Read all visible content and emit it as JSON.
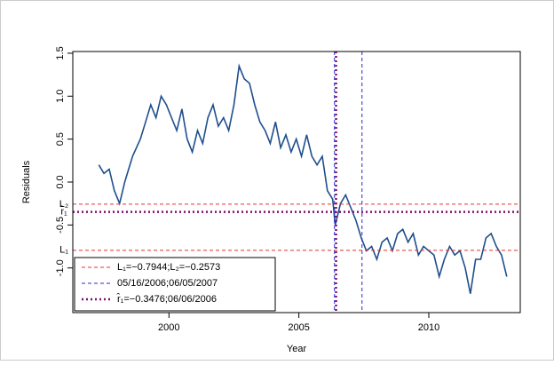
{
  "chart_data": {
    "type": "line",
    "xlabel": "Year",
    "ylabel": "Residuals",
    "xlim": [
      1996.3,
      2013.52
    ],
    "ylim": [
      -1.52,
      1.52
    ],
    "xticks": [
      2000,
      2005,
      2010
    ],
    "yticks": [
      {
        "value": -1.0,
        "label": "-1.0"
      },
      -0.5,
      {
        "value": 0.0,
        "label": "0.0"
      },
      0.5,
      {
        "value": 1.0,
        "label": "1.0"
      },
      1.5
    ],
    "x": [
      1997.3,
      1997.5,
      1997.7,
      1997.9,
      1998.1,
      1998.3,
      1998.6,
      1998.9,
      1999.1,
      1999.3,
      1999.5,
      1999.7,
      1999.9,
      2000.1,
      2000.3,
      2000.5,
      2000.7,
      2000.9,
      2001.1,
      2001.3,
      2001.5,
      2001.7,
      2001.9,
      2002.1,
      2002.3,
      2002.5,
      2002.7,
      2002.9,
      2003.1,
      2003.3,
      2003.5,
      2003.7,
      2003.9,
      2004.1,
      2004.3,
      2004.5,
      2004.7,
      2004.9,
      2005.1,
      2005.3,
      2005.5,
      2005.7,
      2005.9,
      2006.1,
      2006.3,
      2006.4,
      2006.6,
      2006.8,
      2007.0,
      2007.2,
      2007.4,
      2007.6,
      2007.8,
      2008.0,
      2008.2,
      2008.4,
      2008.6,
      2008.8,
      2009.0,
      2009.2,
      2009.4,
      2009.6,
      2009.8,
      2010.0,
      2010.2,
      2010.4,
      2010.6,
      2010.8,
      2011.0,
      2011.2,
      2011.4,
      2011.6,
      2011.8,
      2012.0,
      2012.2,
      2012.4,
      2012.6,
      2012.8,
      2013.0
    ],
    "series": [
      {
        "color": "#1f4e8c",
        "values": [
          0.2,
          0.1,
          0.15,
          -0.1,
          -0.25,
          0.0,
          0.3,
          0.5,
          0.7,
          0.9,
          0.75,
          1.0,
          0.9,
          0.75,
          0.6,
          0.85,
          0.5,
          0.35,
          0.6,
          0.45,
          0.75,
          0.9,
          0.65,
          0.75,
          0.6,
          0.9,
          1.35,
          1.2,
          1.15,
          0.9,
          0.7,
          0.6,
          0.45,
          0.7,
          0.4,
          0.55,
          0.35,
          0.5,
          0.3,
          0.55,
          0.3,
          0.2,
          0.3,
          -0.1,
          -0.2,
          -0.5,
          -0.25,
          -0.15,
          -0.3,
          -0.45,
          -0.65,
          -0.8,
          -0.75,
          -0.9,
          -0.7,
          -0.65,
          -0.8,
          -0.6,
          -0.55,
          -0.7,
          -0.6,
          -0.85,
          -0.75,
          -0.8,
          -0.85,
          -1.1,
          -0.9,
          -0.75,
          -0.85,
          -0.8,
          -1.0,
          -1.3,
          -0.9,
          -0.9,
          -0.65,
          -0.6,
          -0.75,
          -0.85,
          -1.1
        ]
      }
    ],
    "reference_lines": [
      {
        "label": "L₁=−0.7944;L₂=−0.2573",
        "color": "#e83030",
        "style": "dashed",
        "y": [
          -0.7944,
          -0.2573
        ]
      },
      {
        "label": "05/16/2006;06/05/2007",
        "color": "#2a2ad0",
        "style": "dashed",
        "x": [
          2006.37,
          2007.43
        ]
      },
      {
        "label": "r̂₁=−0.3476;06/06/2006",
        "color": "#7a1070",
        "style": "dotted",
        "y": [
          -0.3476
        ],
        "x": [
          2006.43
        ]
      }
    ],
    "axis_annotations": [
      {
        "text": "L₂",
        "y": -0.2573
      },
      {
        "text": "r̂₁",
        "y": -0.3476
      },
      {
        "text": "L₁",
        "y": -0.7944
      }
    ]
  }
}
